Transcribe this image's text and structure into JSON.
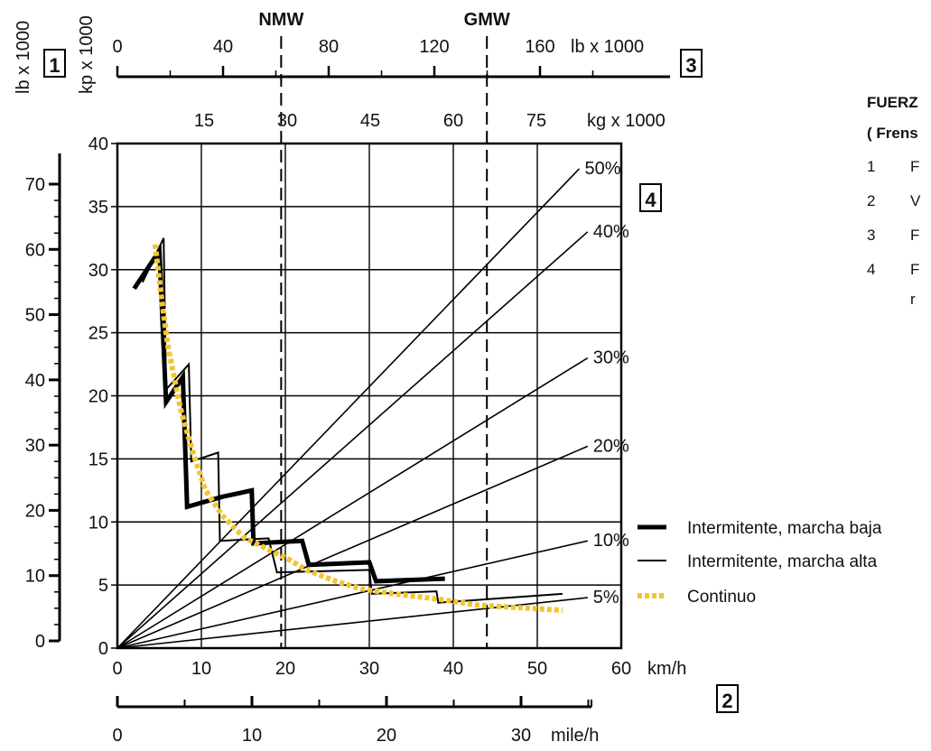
{
  "chart_data": {
    "type": "line",
    "x_axis": {
      "label": "km/h",
      "range": [
        0,
        60
      ],
      "ticks": [
        "0",
        "10",
        "20",
        "30",
        "40",
        "50",
        "60"
      ]
    },
    "y_axis": {
      "label": "kp x 1000",
      "range": [
        0,
        40
      ],
      "ticks": [
        "0",
        "5",
        "10",
        "15",
        "20",
        "25",
        "30",
        "35",
        "40"
      ]
    },
    "y_axis_lb": {
      "label": "lb x 1000",
      "ticks": [
        "0",
        "10",
        "20",
        "30",
        "40",
        "50",
        "60",
        "70"
      ]
    },
    "x_axis_mph": {
      "label": "mile/h",
      "ticks": [
        "0",
        "10",
        "20",
        "30"
      ]
    },
    "top_axis_lb": {
      "label": "lb x 1000",
      "ticks": [
        "0",
        "40",
        "80",
        "120",
        "160"
      ]
    },
    "top_axis_kg": {
      "label": "kg x 1000",
      "ticks": [
        "15",
        "30",
        "45",
        "60",
        "75"
      ]
    },
    "markers": [
      {
        "label": "NMW",
        "x": 19.5
      },
      {
        "label": "GMW",
        "x": 44
      }
    ],
    "grade_lines": [
      {
        "label": "50%",
        "end": [
          55,
          38
        ]
      },
      {
        "label": "40%",
        "end": [
          56,
          33
        ]
      },
      {
        "label": "30%",
        "end": [
          56,
          23
        ]
      },
      {
        "label": "20%",
        "end": [
          56,
          16
        ]
      },
      {
        "label": "10%",
        "end": [
          56,
          8.5
        ]
      },
      {
        "label": "5%",
        "end": [
          56,
          4
        ]
      }
    ],
    "series": [
      {
        "name": "Intermitente, marcha baja",
        "style": "thick",
        "color": "#000000",
        "points": [
          [
            2,
            28.5
          ],
          [
            5,
            31.5
          ],
          [
            5.8,
            19.5
          ],
          [
            7.8,
            21.5
          ],
          [
            8.3,
            11.2
          ],
          [
            12.5,
            12
          ],
          [
            16,
            12.5
          ],
          [
            16.2,
            8.3
          ],
          [
            22,
            8.5
          ],
          [
            22.8,
            6.6
          ],
          [
            30,
            6.8
          ],
          [
            30.8,
            5.3
          ],
          [
            39,
            5.5
          ]
        ]
      },
      {
        "name": "Intermitente, marcha alta",
        "style": "thin",
        "color": "#000000",
        "points": [
          [
            3,
            29
          ],
          [
            5.5,
            32.5
          ],
          [
            5.8,
            20.5
          ],
          [
            8.5,
            22.5
          ],
          [
            8.8,
            14.8
          ],
          [
            12,
            15.5
          ],
          [
            12.2,
            8.5
          ],
          [
            18,
            8.7
          ],
          [
            19,
            6
          ],
          [
            30,
            6.2
          ],
          [
            30.3,
            4.3
          ],
          [
            38,
            4.5
          ],
          [
            38.2,
            3.6
          ],
          [
            53,
            4.3
          ]
        ]
      },
      {
        "name": "Continuo",
        "style": "dotted",
        "color": "#f2c632",
        "points": [
          [
            4.5,
            32
          ],
          [
            5.2,
            28
          ],
          [
            6,
            24
          ],
          [
            7.5,
            19
          ],
          [
            9,
            15.5
          ],
          [
            10.5,
            12.5
          ],
          [
            12.5,
            10.5
          ],
          [
            15,
            8.8
          ],
          [
            18,
            7.8
          ],
          [
            20.5,
            7
          ],
          [
            22.5,
            6.2
          ],
          [
            26,
            5.3
          ],
          [
            29,
            4.7
          ],
          [
            33,
            4.3
          ],
          [
            38,
            3.9
          ],
          [
            43,
            3.4
          ],
          [
            48,
            3.2
          ],
          [
            53,
            3
          ]
        ]
      }
    ]
  },
  "side": {
    "title": "FUERZ",
    "subtitle": "( Frens",
    "items": [
      {
        "num": "1",
        "text": "F"
      },
      {
        "num": "2",
        "text": "V"
      },
      {
        "num": "3",
        "text": "F"
      },
      {
        "num": "4",
        "text": "F"
      },
      {
        "num": "",
        "text": "r"
      }
    ]
  },
  "boxes": {
    "b1": "1",
    "b2": "2",
    "b3": "3",
    "b4": "4"
  }
}
